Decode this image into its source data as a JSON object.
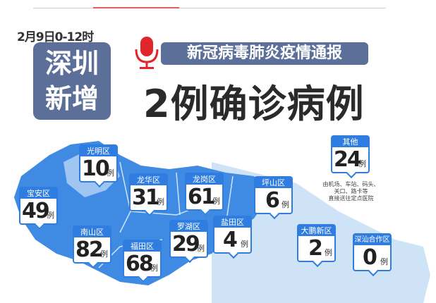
{
  "header": {
    "date_range": "2月9日0-12时",
    "city_label": [
      "深圳",
      "新增"
    ],
    "subtitle": "新冠病毒肺炎疫情通报",
    "headline": "2例确诊病例",
    "icon": "microphone-icon",
    "accent_color": "#5b6f99",
    "mic_color": "#e0262b"
  },
  "map": {
    "region_color_dark": "#3f8ae3",
    "region_color_light": "#cfe3f7",
    "unit": "例",
    "districts": [
      {
        "name": "光明区",
        "count": "10"
      },
      {
        "name": "宝安区",
        "count": "49"
      },
      {
        "name": "龙华区",
        "count": "31"
      },
      {
        "name": "龙岗区",
        "count": "61"
      },
      {
        "name": "坪山区",
        "count": "6"
      },
      {
        "name": "南山区",
        "count": "82"
      },
      {
        "name": "福田区",
        "count": "68"
      },
      {
        "name": "罗湖区",
        "count": "29"
      },
      {
        "name": "盐田区",
        "count": "4"
      },
      {
        "name": "大鹏新区",
        "count": "2"
      },
      {
        "name": "深汕合作区",
        "count": "0"
      },
      {
        "name": "其他",
        "count": "24"
      }
    ],
    "other_note": [
      "由机场、车站、码头、",
      "关口、路卡等",
      "直接送往定点医院"
    ]
  }
}
